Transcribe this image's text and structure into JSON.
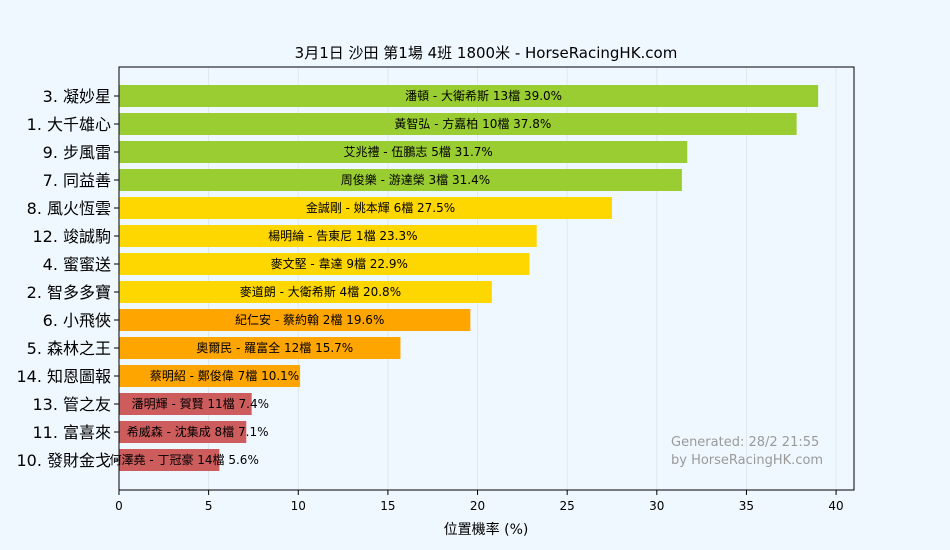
{
  "chart_data": {
    "type": "bar",
    "orientation": "horizontal",
    "title": "3月1日  沙田  第1場  4班  1800米 - HorseRacingHK.com",
    "xlabel": "位置機率 (%)",
    "ylabel": "",
    "xlim": [
      0,
      41
    ],
    "xticks": [
      0,
      5,
      10,
      15,
      20,
      25,
      30,
      35,
      40
    ],
    "grid": true,
    "categories": [
      "3. 凝妙星",
      "1. 大千雄心",
      "9. 步風雷",
      "7. 同益善",
      "8. 風火恆雲",
      "12. 竣誠駒",
      "4. 蜜蜜送",
      "2. 智多多寶",
      "6. 小飛俠",
      "5. 森林之王",
      "14. 知恩圖報",
      "13. 管之友",
      "11. 富喜來",
      "10. 發財金戈"
    ],
    "values": [
      39.0,
      37.8,
      31.7,
      31.4,
      27.5,
      23.3,
      22.9,
      20.8,
      19.6,
      15.7,
      10.1,
      7.4,
      7.1,
      5.6
    ],
    "bar_labels": [
      "潘頓 - 大衛希斯 13檔  39.0%",
      "黃智弘 - 方嘉柏 10檔  37.8%",
      "艾兆禮 - 伍鵬志 5檔  31.7%",
      "周俊樂 - 游達榮 3檔  31.4%",
      "金誠剛 - 姚本輝 6檔  27.5%",
      "楊明綸 - 告東尼 1檔  23.3%",
      "麥文堅 - 韋達 9檔  22.9%",
      "麥道朗 - 大衛希斯 4檔  20.8%",
      "紀仁安 - 蔡約翰 2檔  19.6%",
      "奧爾民 - 羅富全 12檔  15.7%",
      "蔡明紹 - 鄭俊偉 7檔  10.1%",
      "潘明輝 - 賀賢 11檔  7.4%",
      "希威森 - 沈集成 8檔  7.1%",
      "何澤堯 - 丁冠豪 14檔  5.6%"
    ],
    "bar_colors": [
      "#9acd32",
      "#9acd32",
      "#9acd32",
      "#9acd32",
      "#ffd700",
      "#ffd700",
      "#ffd700",
      "#ffd700",
      "#ffa500",
      "#ffa500",
      "#ffa500",
      "#cd5c5c",
      "#cd5c5c",
      "#cd5c5c"
    ],
    "watermark": [
      "Generated: 28/2 21:55",
      "by HorseRacingHK.com"
    ]
  }
}
